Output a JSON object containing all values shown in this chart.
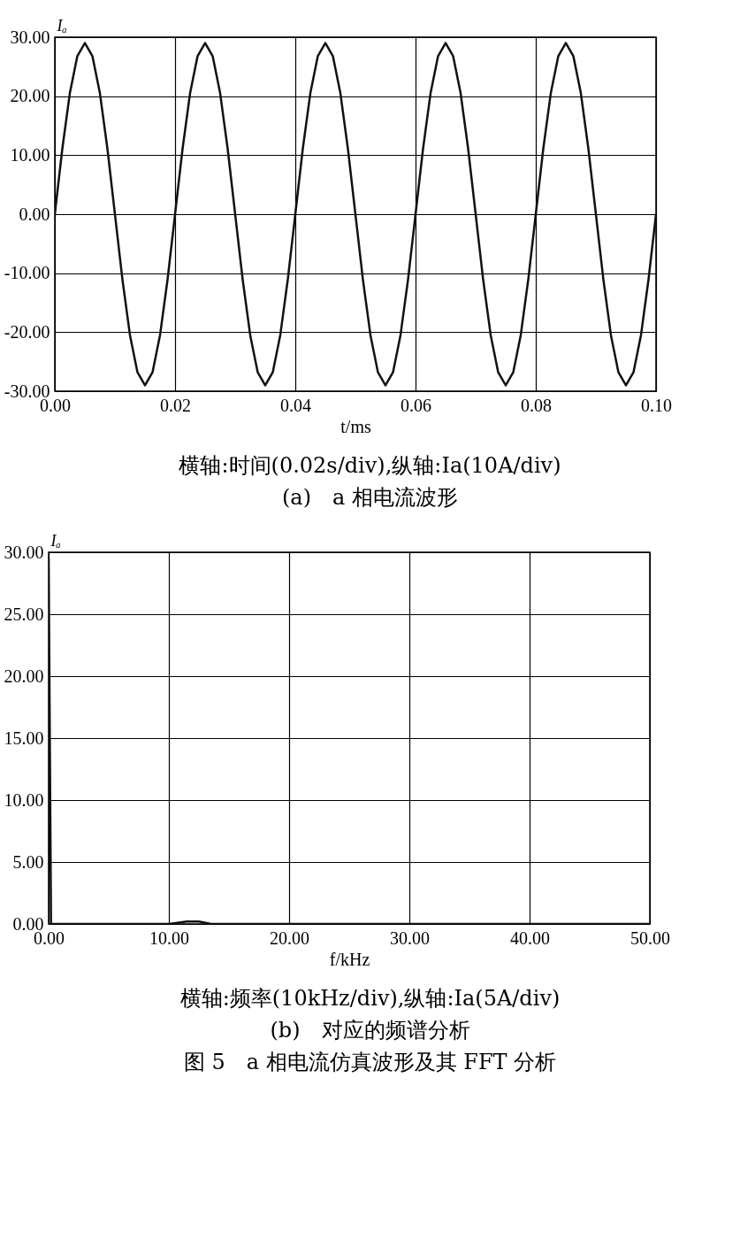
{
  "chart_data": [
    {
      "type": "line",
      "ylabel": "Iₐ",
      "xlabel": "t/ms",
      "x": [
        0,
        0.00125,
        0.0025,
        0.00375,
        0.005,
        0.00625,
        0.0075,
        0.00875,
        0.01,
        0.01125,
        0.0125,
        0.01375,
        0.015,
        0.01625,
        0.0175,
        0.01875,
        0.02,
        0.02125,
        0.0225,
        0.02375,
        0.025,
        0.02625,
        0.0275,
        0.02875,
        0.03,
        0.03125,
        0.0325,
        0.03375,
        0.035,
        0.03625,
        0.0375,
        0.03875,
        0.04,
        0.04125,
        0.0425,
        0.04375,
        0.045,
        0.04625,
        0.0475,
        0.04875,
        0.05,
        0.05125,
        0.0525,
        0.05375,
        0.055,
        0.05625,
        0.0575,
        0.05875,
        0.06,
        0.06125,
        0.0625,
        0.06375,
        0.065,
        0.06625,
        0.0675,
        0.06875,
        0.07,
        0.07125,
        0.0725,
        0.07375,
        0.075,
        0.07625,
        0.0775,
        0.07875,
        0.08,
        0.08125,
        0.0825,
        0.08375,
        0.085,
        0.08625,
        0.0875,
        0.08875,
        0.09,
        0.09125,
        0.0925,
        0.09375,
        0.095,
        0.09625,
        0.0975,
        0.09875,
        0.1
      ],
      "series": [
        {
          "color": "#111111",
          "values": [
            0,
            11.1,
            20.5,
            26.8,
            29,
            26.8,
            20.5,
            11.1,
            0,
            -11.1,
            -20.5,
            -26.8,
            -29,
            -26.8,
            -20.5,
            -11.1,
            0,
            11.1,
            20.5,
            26.8,
            29,
            26.8,
            20.5,
            11.1,
            0,
            -11.1,
            -20.5,
            -26.8,
            -29,
            -26.8,
            -20.5,
            -11.1,
            0,
            11.1,
            20.5,
            26.8,
            29,
            26.8,
            20.5,
            11.1,
            0,
            -11.1,
            -20.5,
            -26.8,
            -29,
            -26.8,
            -20.5,
            -11.1,
            0,
            11.1,
            20.5,
            26.8,
            29,
            26.8,
            20.5,
            11.1,
            0,
            -11.1,
            -20.5,
            -26.8,
            -29,
            -26.8,
            -20.5,
            -11.1,
            0,
            11.1,
            20.5,
            26.8,
            29,
            26.8,
            20.5,
            11.1,
            0,
            -11.1,
            -20.5,
            -26.8,
            -29,
            -26.8,
            -20.5,
            -11.1,
            0
          ]
        }
      ],
      "xlim": [
        0,
        0.1
      ],
      "xticks": [
        {
          "value": 0,
          "label": "0.00"
        },
        {
          "value": 0.02,
          "label": "0.02"
        },
        {
          "value": 0.04,
          "label": "0.04"
        },
        {
          "value": 0.06,
          "label": "0.06"
        },
        {
          "value": 0.08,
          "label": "0.08"
        },
        {
          "value": 0.1,
          "label": "0.10"
        }
      ],
      "ylim": [
        -30,
        30
      ],
      "yticks": [
        {
          "value": -30,
          "label": "-30.00"
        },
        {
          "value": -20,
          "label": "-20.00"
        },
        {
          "value": -10,
          "label": "-10.00"
        },
        {
          "value": 0,
          "label": "0.00"
        },
        {
          "value": 10,
          "label": "10.00"
        },
        {
          "value": 20,
          "label": "20.00"
        },
        {
          "value": 30,
          "label": "30.00"
        }
      ],
      "grid": true,
      "annotations": [
        "横轴:时间(0.02s/div),纵轴:Ia(10A/div)",
        "(a)　a 相电流波形"
      ]
    },
    {
      "type": "line",
      "ylabel": "Iₐ",
      "xlabel": "f/kHz",
      "x": [
        0,
        0.2,
        10,
        11.5,
        12.5,
        13.5,
        50
      ],
      "series": [
        {
          "color": "#111111",
          "values": [
            29.5,
            0,
            0,
            0.2,
            0.2,
            0,
            0
          ]
        }
      ],
      "xlim": [
        0,
        50
      ],
      "xticks": [
        {
          "value": 0,
          "label": "0.00"
        },
        {
          "value": 10,
          "label": "10.00"
        },
        {
          "value": 20,
          "label": "20.00"
        },
        {
          "value": 30,
          "label": "30.00"
        },
        {
          "value": 40,
          "label": "40.00"
        },
        {
          "value": 50,
          "label": "50.00"
        }
      ],
      "ylim": [
        0,
        30
      ],
      "yticks": [
        {
          "value": 0,
          "label": "0.00"
        },
        {
          "value": 5,
          "label": "5.00"
        },
        {
          "value": 10,
          "label": "10.00"
        },
        {
          "value": 15,
          "label": "15.00"
        },
        {
          "value": 20,
          "label": "20.00"
        },
        {
          "value": 25,
          "label": "25.00"
        },
        {
          "value": 30,
          "label": "30.00"
        }
      ],
      "grid": true,
      "annotations": [
        "横轴:频率(10kHz/div),纵轴:Ia(5A/div)",
        "(b)　对应的频谱分析",
        "图 5　a 相电流仿真波形及其 FFT 分析"
      ]
    }
  ]
}
